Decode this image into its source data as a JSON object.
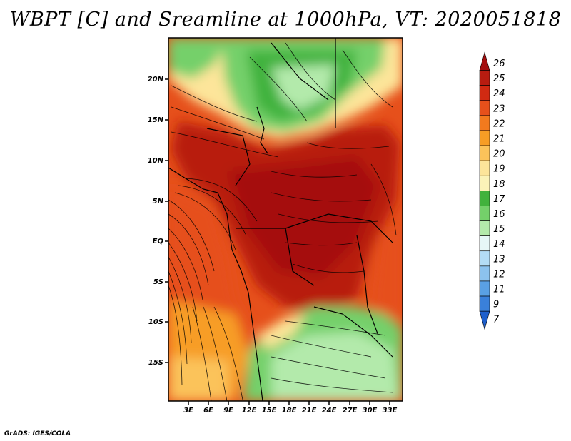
{
  "title": "WBPT [C] and Sreamline at 1000hPa, VT: 2020051818",
  "credit": "GrADS: IGES/COLA",
  "map": {
    "lat_ticks": [
      "20N",
      "15N",
      "10N",
      "5N",
      "EQ",
      "5S",
      "10S",
      "15S"
    ],
    "lon_ticks": [
      "3E",
      "6E",
      "9E",
      "12E",
      "15E",
      "18E",
      "21E",
      "24E",
      "27E",
      "30E",
      "33E"
    ]
  },
  "colorbar": {
    "levels": [
      {
        "label": "26",
        "color": "#a50f0f"
      },
      {
        "label": "25",
        "color": "#b81c10"
      },
      {
        "label": "24",
        "color": "#d12a12"
      },
      {
        "label": "23",
        "color": "#e6501b"
      },
      {
        "label": "22",
        "color": "#f27a1e"
      },
      {
        "label": "21",
        "color": "#f79d25"
      },
      {
        "label": "20",
        "color": "#fbc35a"
      },
      {
        "label": "19",
        "color": "#fde59a"
      },
      {
        "label": "18",
        "color": "#fbf3b8"
      },
      {
        "label": "17",
        "color": "#41b23c"
      },
      {
        "label": "16",
        "color": "#74d06a"
      },
      {
        "label": "15",
        "color": "#b3eaab"
      },
      {
        "label": "14",
        "color": "#e6f7f7"
      },
      {
        "label": "13",
        "color": "#b4dcf5"
      },
      {
        "label": "12",
        "color": "#8cc2ee"
      },
      {
        "label": "11",
        "color": "#5aa0e4"
      },
      {
        "label": "9",
        "color": "#3a80da"
      },
      {
        "label": "7",
        "color": "#1e5fcc"
      }
    ]
  }
}
